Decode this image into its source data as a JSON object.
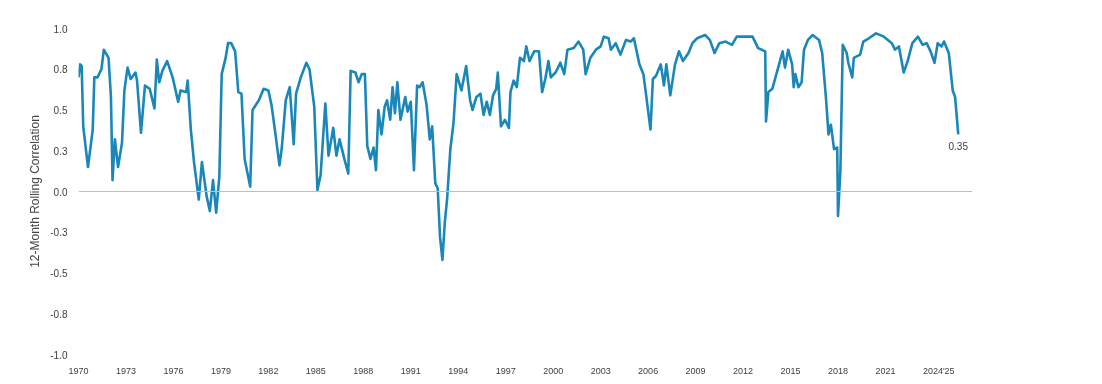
{
  "chart_data": {
    "type": "line",
    "ylabel": "12-Month Rolling Correlation",
    "x": [
      1970.0,
      1970.1,
      1970.2,
      1970.3,
      1970.6,
      1970.9,
      1971.0,
      1971.2,
      1971.45,
      1971.6,
      1971.9,
      1972.05,
      1972.15,
      1972.3,
      1972.5,
      1972.75,
      1972.9,
      1973.1,
      1973.3,
      1973.6,
      1973.7,
      1973.95,
      1974.2,
      1974.5,
      1974.8,
      1974.95,
      1975.1,
      1975.3,
      1975.6,
      1975.95,
      1976.3,
      1976.45,
      1976.8,
      1976.9,
      1977.1,
      1977.3,
      1977.6,
      1977.8,
      1978.1,
      1978.3,
      1978.5,
      1978.7,
      1978.9,
      1979.05,
      1979.3,
      1979.45,
      1979.65,
      1979.9,
      1980.1,
      1980.3,
      1980.5,
      1980.85,
      1981.0,
      1981.4,
      1981.7,
      1982.0,
      1982.2,
      1982.45,
      1982.7,
      1982.85,
      1983.1,
      1983.35,
      1983.6,
      1983.75,
      1984.05,
      1984.4,
      1984.6,
      1984.9,
      1985.1,
      1985.3,
      1985.6,
      1985.8,
      1986.1,
      1986.3,
      1986.5,
      1986.8,
      1987.05,
      1987.2,
      1987.5,
      1987.7,
      1987.9,
      1988.1,
      1988.25,
      1988.45,
      1988.65,
      1988.8,
      1988.95,
      1989.15,
      1989.35,
      1989.5,
      1989.7,
      1989.85,
      1990.0,
      1990.15,
      1990.35,
      1990.65,
      1990.8,
      1991.0,
      1991.2,
      1991.4,
      1991.55,
      1991.75,
      1992.0,
      1992.2,
      1992.35,
      1992.55,
      1992.7,
      1992.85,
      1993.0,
      1993.15,
      1993.3,
      1993.5,
      1993.7,
      1993.9,
      1994.2,
      1994.5,
      1994.75,
      1994.9,
      1995.15,
      1995.4,
      1995.6,
      1995.8,
      1996.0,
      1996.2,
      1996.4,
      1996.5,
      1996.7,
      1996.95,
      1997.2,
      1997.3,
      1997.5,
      1997.7,
      1997.9,
      1998.15,
      1998.3,
      1998.5,
      1998.8,
      1999.1,
      1999.3,
      1999.5,
      1999.7,
      1999.85,
      2000.15,
      2000.45,
      2000.7,
      2000.9,
      2001.3,
      2001.6,
      2001.9,
      2002.05,
      2002.35,
      2002.7,
      2003.0,
      2003.2,
      2003.5,
      2003.65,
      2003.95,
      2004.25,
      2004.6,
      2004.9,
      2005.1,
      2005.45,
      2005.7,
      2005.85,
      2006.15,
      2006.3,
      2006.5,
      2006.8,
      2007.0,
      2007.15,
      2007.4,
      2007.7,
      2007.95,
      2008.2,
      2008.55,
      2008.8,
      2009.1,
      2009.6,
      2009.9,
      2010.2,
      2010.5,
      2010.9,
      2011.3,
      2011.6,
      2012.1,
      2012.6,
      2012.95,
      2013.4,
      2013.45,
      2013.6,
      2013.85,
      2014.5,
      2014.65,
      2014.85,
      2015.1,
      2015.2,
      2015.3,
      2015.5,
      2015.7,
      2015.85,
      2016.1,
      2016.4,
      2016.8,
      2017.0,
      2017.25,
      2017.4,
      2017.55,
      2017.75,
      2017.95,
      2018.0,
      2018.15,
      2018.3,
      2018.55,
      2018.65,
      2018.9,
      2019.0,
      2019.4,
      2019.6,
      2019.95,
      2020.4,
      2020.9,
      2021.4,
      2021.6,
      2021.85,
      2022.15,
      2022.4,
      2022.7,
      2023.05,
      2023.35,
      2023.6,
      2023.85,
      2024.1,
      2024.3,
      2024.55,
      2024.7,
      2025.0,
      2025.25,
      2025.4,
      2025.6
    ],
    "series": [
      {
        "color": "#1a87b8",
        "values": [
          0.7,
          0.78,
          0.77,
          0.4,
          0.15,
          0.38,
          0.7,
          0.7,
          0.75,
          0.87,
          0.82,
          0.58,
          0.07,
          0.32,
          0.15,
          0.3,
          0.62,
          0.76,
          0.69,
          0.73,
          0.68,
          0.36,
          0.65,
          0.63,
          0.51,
          0.81,
          0.67,
          0.74,
          0.8,
          0.7,
          0.55,
          0.62,
          0.61,
          0.68,
          0.38,
          0.18,
          -0.05,
          0.18,
          -0.03,
          -0.12,
          0.07,
          -0.13,
          0.09,
          0.72,
          0.82,
          0.91,
          0.91,
          0.86,
          0.61,
          0.6,
          0.2,
          0.03,
          0.5,
          0.56,
          0.63,
          0.62,
          0.53,
          0.35,
          0.16,
          0.27,
          0.56,
          0.64,
          0.29,
          0.6,
          0.7,
          0.79,
          0.75,
          0.52,
          0.01,
          0.1,
          0.54,
          0.22,
          0.39,
          0.22,
          0.32,
          0.2,
          0.11,
          0.74,
          0.73,
          0.67,
          0.72,
          0.72,
          0.28,
          0.2,
          0.27,
          0.13,
          0.5,
          0.35,
          0.52,
          0.56,
          0.44,
          0.64,
          0.48,
          0.67,
          0.44,
          0.58,
          0.49,
          0.55,
          0.13,
          0.65,
          0.64,
          0.67,
          0.53,
          0.32,
          0.4,
          0.05,
          0.02,
          -0.28,
          -0.42,
          -0.19,
          -0.04,
          0.26,
          0.42,
          0.72,
          0.62,
          0.77,
          0.56,
          0.5,
          0.58,
          0.6,
          0.47,
          0.55,
          0.47,
          0.59,
          0.63,
          0.73,
          0.4,
          0.44,
          0.39,
          0.61,
          0.68,
          0.64,
          0.82,
          0.8,
          0.89,
          0.8,
          0.86,
          0.86,
          0.61,
          0.69,
          0.8,
          0.7,
          0.73,
          0.79,
          0.72,
          0.87,
          0.88,
          0.92,
          0.87,
          0.72,
          0.82,
          0.87,
          0.89,
          0.95,
          0.94,
          0.87,
          0.91,
          0.84,
          0.93,
          0.92,
          0.94,
          0.78,
          0.72,
          0.61,
          0.38,
          0.69,
          0.71,
          0.78,
          0.65,
          0.78,
          0.59,
          0.78,
          0.86,
          0.8,
          0.85,
          0.91,
          0.94,
          0.96,
          0.93,
          0.85,
          0.91,
          0.92,
          0.9,
          0.95,
          0.95,
          0.95,
          0.88,
          0.86,
          0.43,
          0.61,
          0.63,
          0.86,
          0.76,
          0.87,
          0.78,
          0.64,
          0.72,
          0.64,
          0.67,
          0.87,
          0.93,
          0.96,
          0.93,
          0.85,
          0.56,
          0.35,
          0.41,
          0.26,
          0.27,
          -0.15,
          0.13,
          0.9,
          0.85,
          0.79,
          0.7,
          0.82,
          0.84,
          0.92,
          0.94,
          0.97,
          0.95,
          0.91,
          0.87,
          0.89,
          0.73,
          0.8,
          0.91,
          0.95,
          0.9,
          0.91,
          0.86,
          0.79,
          0.91,
          0.89,
          0.92,
          0.85,
          0.62,
          0.58,
          0.35
        ]
      }
    ],
    "xlim": [
      1970,
      2026.5
    ],
    "xticks": [
      1970,
      1973,
      1976,
      1979,
      1982,
      1985,
      1988,
      1991,
      1994,
      1997,
      2000,
      2003,
      2006,
      2009,
      2012,
      2015,
      2018,
      2021,
      2024,
      {
        "value": 2025,
        "label": "'25"
      }
    ],
    "ylim": [
      -1.0,
      1.0
    ],
    "yticks": [
      {
        "value": -1,
        "label": "-1.0"
      },
      {
        "value": -0.75,
        "label": "-0.8"
      },
      {
        "value": -0.5,
        "label": "-0.5"
      },
      {
        "value": -0.25,
        "label": "-0.3"
      },
      {
        "value": 0,
        "label": "0.0"
      },
      {
        "value": 0.25,
        "label": "0.3"
      },
      {
        "value": 0.5,
        "label": "0.5"
      },
      {
        "value": 0.75,
        "label": "0.8"
      },
      {
        "value": 1,
        "label": "1.0"
      }
    ],
    "ref_lines": [
      {
        "axis": "y",
        "value": 0,
        "color": "#bfbfbf"
      }
    ],
    "annotations": [
      {
        "text": "0.35",
        "x": 2025.6,
        "y": 0.35
      }
    ],
    "grid": false,
    "marker": "none",
    "line_style": "solid"
  }
}
